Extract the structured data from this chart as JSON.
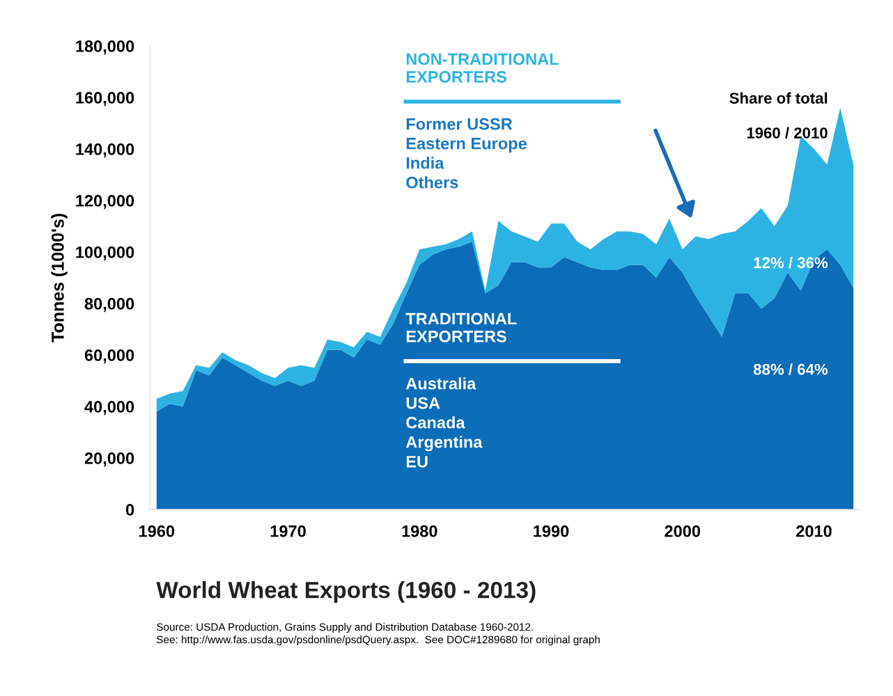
{
  "chart_data": {
    "type": "area",
    "stacked": true,
    "title": "World Wheat Exports (1960 - 2013)",
    "ylabel": "Tonnes (1000's)",
    "x": [
      1960,
      1961,
      1962,
      1963,
      1964,
      1965,
      1966,
      1967,
      1968,
      1969,
      1970,
      1971,
      1972,
      1973,
      1974,
      1975,
      1976,
      1977,
      1978,
      1979,
      1980,
      1981,
      1982,
      1983,
      1984,
      1985,
      1986,
      1987,
      1988,
      1989,
      1990,
      1991,
      1992,
      1993,
      1994,
      1995,
      1996,
      1997,
      1998,
      1999,
      2000,
      2001,
      2002,
      2003,
      2004,
      2005,
      2006,
      2007,
      2008,
      2009,
      2010,
      2011,
      2012,
      2013
    ],
    "series": [
      {
        "name": "TRADITIONAL EXPORTERS",
        "color": "#0b6cb8",
        "values": [
          38000,
          41000,
          40000,
          54000,
          52000,
          59000,
          56000,
          53000,
          50000,
          48000,
          50000,
          48000,
          50000,
          62000,
          62000,
          59000,
          66000,
          64000,
          72000,
          84000,
          95000,
          99000,
          101000,
          102000,
          104000,
          84000,
          87000,
          96000,
          96000,
          94000,
          94000,
          98000,
          96000,
          94000,
          93000,
          93000,
          95000,
          95000,
          90000,
          98000,
          92000,
          83000,
          75000,
          67000,
          84000,
          84000,
          78000,
          82000,
          92000,
          85000,
          97000,
          101000,
          95000,
          86000
        ]
      },
      {
        "name": "NON-TRADITIONAL EXPORTERS",
        "color": "#2db3e3",
        "values": [
          5000,
          4000,
          6000,
          2000,
          3000,
          2000,
          2000,
          3000,
          3000,
          3000,
          5000,
          8000,
          5000,
          4000,
          3000,
          4000,
          3000,
          3000,
          6000,
          4000,
          6000,
          3000,
          2000,
          3000,
          4000,
          1000,
          25000,
          12000,
          10000,
          10000,
          17000,
          13000,
          8000,
          7000,
          12000,
          15000,
          13000,
          12000,
          13000,
          15000,
          9000,
          23000,
          30000,
          40000,
          24000,
          28000,
          39000,
          28000,
          26000,
          60000,
          43000,
          33000,
          61000,
          48000
        ]
      }
    ],
    "xlim": [
      1959.5,
      2013.5
    ],
    "xticks": [
      1960,
      1970,
      1980,
      1990,
      2000,
      2010
    ],
    "ylim": [
      0,
      180000
    ],
    "yticks": [
      0,
      {
        "value": 20000,
        "label": "20,000"
      },
      {
        "value": 40000,
        "label": "40,000"
      },
      {
        "value": 60000,
        "label": "60,000"
      },
      {
        "value": 80000,
        "label": "80,000"
      },
      {
        "value": 100000,
        "label": "100,000"
      },
      {
        "value": 120000,
        "label": "120,000"
      },
      {
        "value": 140000,
        "label": "140,000"
      },
      {
        "value": 160000,
        "label": "160,000"
      },
      {
        "value": 180000,
        "label": "180,000"
      }
    ],
    "grid": false,
    "annotations": [
      "Former USSR\nEastern Europe\nIndia\nOthers",
      "Australia\nUSA\nCanada\nArgentina\nEU",
      "Share of total",
      "1960 / 2010",
      "12% / 36%",
      "88% / 64%",
      "Source: USDA Production, Grains Supply and Distribution Database 1960-2012.\nSee: http://www.fas.usda.gov/psdonline/psdQuery.aspx.  See DOC#1289680 for original graph"
    ]
  }
}
